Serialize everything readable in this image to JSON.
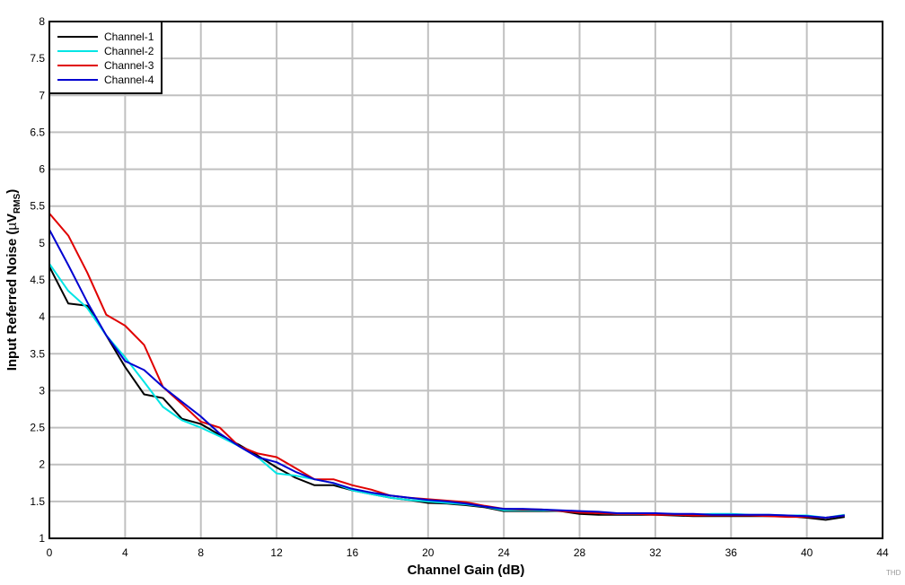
{
  "chart_data": {
    "type": "line",
    "title": "",
    "xlabel": "Channel Gain (dB)",
    "ylabel": "Input Referred Noise (µV_RMS)",
    "ylabel_parts": {
      "main": "Input Referred Noise (",
      "mu": "µ",
      "v": "V",
      "sub": "RMS",
      "close": ")"
    },
    "xlim": [
      0,
      44
    ],
    "ylim": [
      1,
      8
    ],
    "xticks": [
      0,
      4,
      8,
      12,
      16,
      20,
      24,
      28,
      32,
      36,
      40,
      44
    ],
    "yticks": [
      1,
      1.5,
      2,
      2.5,
      3,
      3.5,
      4,
      4.5,
      5,
      5.5,
      6,
      6.5,
      7,
      7.5,
      8
    ],
    "grid": true,
    "legend_position": "upper-left",
    "watermark": "THD",
    "x": [
      0,
      1,
      2,
      3,
      4,
      5,
      6,
      7,
      8,
      9,
      10,
      11,
      12,
      13,
      14,
      15,
      16,
      17,
      18,
      19,
      20,
      21,
      22,
      23,
      24,
      25,
      26,
      27,
      28,
      29,
      30,
      31,
      32,
      33,
      34,
      35,
      36,
      37,
      38,
      39,
      40,
      41,
      42
    ],
    "series": [
      {
        "name": "Channel-1",
        "color": "#000000",
        "values": [
          4.68,
          4.18,
          4.15,
          3.75,
          3.32,
          2.95,
          2.9,
          2.62,
          2.55,
          2.4,
          2.27,
          2.12,
          1.96,
          1.82,
          1.72,
          1.72,
          1.65,
          1.6,
          1.55,
          1.52,
          1.48,
          1.47,
          1.45,
          1.42,
          1.37,
          1.37,
          1.37,
          1.37,
          1.33,
          1.32,
          1.32,
          1.32,
          1.32,
          1.31,
          1.3,
          1.3,
          1.3,
          1.3,
          1.3,
          1.3,
          1.28,
          1.25,
          1.29
        ]
      },
      {
        "name": "Channel-2",
        "color": "#00E5E5",
        "values": [
          4.72,
          4.35,
          4.12,
          3.75,
          3.45,
          3.12,
          2.78,
          2.6,
          2.5,
          2.38,
          2.25,
          2.1,
          1.88,
          1.85,
          1.8,
          1.75,
          1.65,
          1.6,
          1.55,
          1.52,
          1.5,
          1.48,
          1.46,
          1.43,
          1.38,
          1.38,
          1.38,
          1.37,
          1.36,
          1.34,
          1.33,
          1.33,
          1.33,
          1.33,
          1.32,
          1.33,
          1.33,
          1.32,
          1.32,
          1.31,
          1.31,
          1.28,
          1.32
        ]
      },
      {
        "name": "Channel-3",
        "color": "#E00000",
        "values": [
          5.4,
          5.1,
          4.6,
          4.03,
          3.88,
          3.62,
          3.05,
          2.82,
          2.58,
          2.5,
          2.25,
          2.15,
          2.1,
          1.95,
          1.8,
          1.8,
          1.72,
          1.66,
          1.58,
          1.55,
          1.53,
          1.51,
          1.49,
          1.44,
          1.4,
          1.39,
          1.39,
          1.37,
          1.35,
          1.34,
          1.33,
          1.33,
          1.32,
          1.32,
          1.31,
          1.31,
          1.31,
          1.31,
          1.3,
          1.29,
          1.29,
          1.28,
          1.31
        ]
      },
      {
        "name": "Channel-4",
        "color": "#0000D0",
        "values": [
          5.18,
          4.7,
          4.2,
          3.75,
          3.4,
          3.28,
          3.05,
          2.85,
          2.65,
          2.42,
          2.25,
          2.1,
          2.03,
          1.9,
          1.8,
          1.75,
          1.67,
          1.62,
          1.58,
          1.55,
          1.52,
          1.5,
          1.47,
          1.43,
          1.4,
          1.4,
          1.39,
          1.38,
          1.37,
          1.36,
          1.34,
          1.34,
          1.34,
          1.33,
          1.33,
          1.32,
          1.32,
          1.32,
          1.32,
          1.31,
          1.3,
          1.28,
          1.31
        ]
      }
    ]
  }
}
